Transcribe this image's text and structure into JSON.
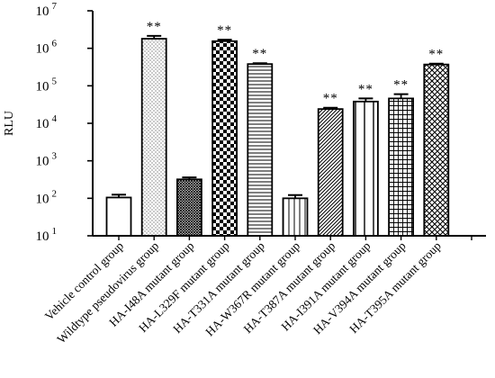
{
  "chart_data": {
    "type": "bar",
    "ylabel": "RLU",
    "yscale": "log",
    "ylim": [
      10,
      10000000
    ],
    "yticks": [
      {
        "value": 10,
        "base": "10",
        "exp": "1"
      },
      {
        "value": 100,
        "base": "10",
        "exp": "2"
      },
      {
        "value": 1000,
        "base": "10",
        "exp": "3"
      },
      {
        "value": 10000,
        "base": "10",
        "exp": "4"
      },
      {
        "value": 100000,
        "base": "10",
        "exp": "5"
      },
      {
        "value": 1000000,
        "base": "10",
        "exp": "6"
      },
      {
        "value": 10000000,
        "base": "10",
        "exp": "7"
      }
    ],
    "categories": [
      "Vehicle control group",
      "Wildtype pseudovirus group",
      "HA-I48A mutant group",
      "HA-L329F mutant group",
      "HA-T331A mutant group",
      "HA-W367R mutant group",
      "HA-T387A mutant group",
      "HA-I391A mutant group",
      "HA-V394A mutant group",
      "HA-T395A mutant group"
    ],
    "values": [
      105,
      1800000,
      320,
      1550000,
      380000,
      100,
      24000,
      38000,
      46000,
      370000
    ],
    "error_upper": [
      125,
      2150000,
      360,
      1700000,
      400000,
      122,
      26000,
      46000,
      60000,
      390000
    ],
    "patterns": [
      "none",
      "dots",
      "crosshatch-fine",
      "checker",
      "hlines",
      "vlines",
      "diag-right",
      "vlines-wide",
      "grid",
      "diag-cross"
    ],
    "significance": [
      "",
      "**",
      "",
      "**",
      "**",
      "",
      "**",
      "**",
      "**",
      "**"
    ],
    "grid": false,
    "legend": "none"
  }
}
